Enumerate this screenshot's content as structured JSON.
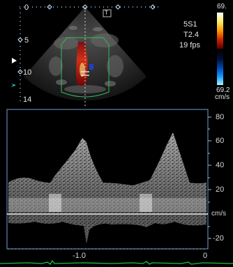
{
  "params": {
    "probe": "5S1",
    "tissue": "T2.4",
    "frame_rate": "19 fps"
  },
  "color_scale": {
    "top_value": "69.",
    "bottom_value": "69.2",
    "unit": "cm/s",
    "gradient_top": [
      "#ffffff",
      "#ffee66",
      "#ff9900",
      "#cc2200",
      "#550000"
    ],
    "gradient_bottom": [
      "#001133",
      "#0044aa",
      "#1199ff",
      "#aaeeff"
    ]
  },
  "depth_scale": {
    "labels": [
      "0",
      "5",
      "10",
      "14"
    ]
  },
  "orientation_marker": "T",
  "velocity_scale": {
    "labels": [
      "80",
      "60",
      "40",
      "20",
      "cm/s",
      "-20"
    ]
  },
  "time_scale": {
    "labels": [
      "-1.0",
      "0"
    ]
  },
  "colors": {
    "baseline": "#ffffff",
    "ecg": "#1fbf3f",
    "sector_outline": "#2fbf5a",
    "dot_markers": "#9ad0ff",
    "pointer_cyan": "#33c9d8"
  }
}
